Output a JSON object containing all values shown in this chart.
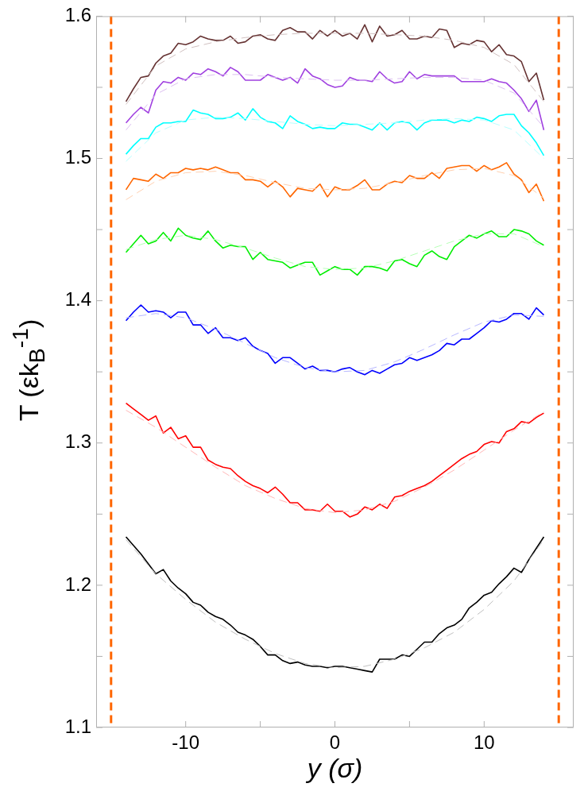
{
  "chart_data": {
    "type": "line",
    "xlabel": "y (σ)",
    "ylabel": "T (εk$_{B}$$^{-1}$)",
    "marker": "none",
    "xlim": [
      -16,
      16
    ],
    "ylim": [
      1.1,
      1.6
    ],
    "xticks": [
      -10,
      {
        "value": -5,
        "label": null
      },
      0,
      {
        "value": 5,
        "label": null
      },
      10
    ],
    "yticks": [
      1.1,
      {
        "value": 1.15,
        "label": null
      },
      1.2,
      {
        "value": 1.25,
        "label": null
      },
      1.3,
      {
        "value": 1.35,
        "label": null
      },
      1.4,
      {
        "value": 1.45,
        "label": null
      },
      1.5,
      {
        "value": 1.55,
        "label": null
      },
      1.6
    ],
    "ref_lines": [
      {
        "axis": "x",
        "value": -15,
        "color": "#ff6600",
        "line_style": "dashed"
      },
      {
        "axis": "x",
        "value": 15,
        "color": "#ff6600",
        "line_style": "dashed"
      }
    ],
    "x": [
      -14,
      -13.5,
      -13,
      -12.5,
      -12,
      -11.5,
      -11,
      -10.5,
      -10,
      -9.5,
      -9,
      -8.5,
      -8,
      -7.5,
      -7,
      -6.5,
      -6,
      -5.5,
      -5,
      -4.5,
      -4,
      -3.5,
      -3,
      -2.5,
      -2,
      -1.5,
      -1,
      -0.5,
      0,
      0.5,
      1,
      1.5,
      2,
      2.5,
      3,
      3.5,
      4,
      4.5,
      5,
      5.5,
      6,
      6.5,
      7,
      7.5,
      8,
      8.5,
      9,
      9.5,
      10,
      10.5,
      11,
      11.5,
      12,
      12.5,
      13,
      13.5,
      14
    ],
    "series": [
      {
        "line_style": "dashed",
        "color": "#c0c0c0",
        "x": [
          -14,
          -12,
          -10,
          -8,
          -6,
          -4,
          -2,
          0,
          2,
          4,
          6,
          8,
          10,
          12,
          14
        ],
        "values": [
          1.232,
          1.208,
          1.19,
          1.174,
          1.162,
          1.152,
          1.145,
          1.142,
          1.143,
          1.148,
          1.156,
          1.167,
          1.183,
          1.203,
          1.232
        ]
      },
      {
        "line_style": "dashed",
        "color": "#ffb8b8",
        "x": [
          -14,
          -12,
          -10,
          -8,
          -6,
          -4,
          -2,
          0,
          2,
          4,
          6,
          8,
          10,
          12,
          14
        ],
        "values": [
          1.323,
          1.311,
          1.297,
          1.283,
          1.27,
          1.261,
          1.254,
          1.251,
          1.253,
          1.259,
          1.269,
          1.281,
          1.295,
          1.309,
          1.322
        ]
      },
      {
        "line_style": "dashed",
        "color": "#b8b8ff",
        "x": [
          -14,
          -12,
          -10,
          -8,
          -6,
          -4,
          -2,
          0,
          2,
          4,
          6,
          8,
          10,
          12,
          14
        ],
        "values": [
          1.388,
          1.391,
          1.388,
          1.38,
          1.37,
          1.36,
          1.353,
          1.35,
          1.351,
          1.357,
          1.366,
          1.376,
          1.385,
          1.39,
          1.389
        ]
      },
      {
        "line_style": "dashed",
        "color": "#b8ffb8",
        "x": [
          -14,
          -12,
          -10,
          -8,
          -6,
          -4,
          -2,
          0,
          2,
          4,
          6,
          8,
          10,
          12,
          14
        ],
        "values": [
          1.436,
          1.443,
          1.446,
          1.443,
          1.437,
          1.43,
          1.424,
          1.422,
          1.423,
          1.428,
          1.435,
          1.442,
          1.447,
          1.447,
          1.438
        ]
      },
      {
        "line_style": "dashed",
        "color": "#ffd0b0",
        "x": [
          -14,
          -12,
          -10,
          -8,
          -6,
          -4,
          -2,
          0,
          2,
          4,
          6,
          8,
          10,
          12,
          14
        ],
        "values": [
          1.471,
          1.484,
          1.49,
          1.491,
          1.488,
          1.483,
          1.479,
          1.478,
          1.479,
          1.483,
          1.488,
          1.492,
          1.493,
          1.488,
          1.472
        ]
      },
      {
        "line_style": "dashed",
        "color": "#b8ffff",
        "x": [
          -14,
          -12,
          -10,
          -8,
          -6,
          -4,
          -2,
          0,
          2,
          4,
          6,
          8,
          10,
          12,
          14
        ],
        "values": [
          1.498,
          1.518,
          1.527,
          1.529,
          1.528,
          1.526,
          1.524,
          1.523,
          1.524,
          1.525,
          1.527,
          1.528,
          1.527,
          1.52,
          1.5
        ]
      },
      {
        "line_style": "dashed",
        "color": "#dcc0f0",
        "x": [
          -14,
          -12,
          -10,
          -8,
          -6,
          -4,
          -2,
          0,
          2,
          4,
          6,
          8,
          10,
          12,
          14
        ],
        "values": [
          1.52,
          1.545,
          1.556,
          1.559,
          1.559,
          1.557,
          1.556,
          1.555,
          1.555,
          1.556,
          1.557,
          1.557,
          1.555,
          1.546,
          1.522
        ]
      },
      {
        "line_style": "dashed",
        "color": "#d0c0c0",
        "x": [
          -14,
          -12,
          -10,
          -8,
          -6,
          -4,
          -2,
          0,
          2,
          4,
          6,
          8,
          10,
          12,
          14
        ],
        "values": [
          1.538,
          1.565,
          1.577,
          1.582,
          1.585,
          1.587,
          1.588,
          1.588,
          1.588,
          1.587,
          1.586,
          1.583,
          1.578,
          1.566,
          1.54
        ]
      },
      {
        "line_style": "solid",
        "color": "#000000",
        "values": [
          1.234,
          1.228,
          1.222,
          1.215,
          1.208,
          1.211,
          1.203,
          1.198,
          1.194,
          1.188,
          1.186,
          1.181,
          1.178,
          1.176,
          1.172,
          1.167,
          1.165,
          1.162,
          1.157,
          1.151,
          1.151,
          1.147,
          1.145,
          1.146,
          1.144,
          1.143,
          1.143,
          1.142,
          1.143,
          1.143,
          1.142,
          1.141,
          1.14,
          1.139,
          1.148,
          1.148,
          1.148,
          1.151,
          1.15,
          1.155,
          1.16,
          1.16,
          1.166,
          1.17,
          1.172,
          1.176,
          1.184,
          1.188,
          1.193,
          1.195,
          1.201,
          1.206,
          1.212,
          1.209,
          1.218,
          1.226,
          1.234
        ]
      },
      {
        "line_style": "solid",
        "color": "#ff0000",
        "values": [
          1.328,
          1.324,
          1.32,
          1.316,
          1.319,
          1.307,
          1.311,
          1.303,
          1.305,
          1.297,
          1.297,
          1.288,
          1.285,
          1.283,
          1.282,
          1.277,
          1.273,
          1.27,
          1.268,
          1.265,
          1.269,
          1.264,
          1.258,
          1.258,
          1.253,
          1.253,
          1.252,
          1.257,
          1.252,
          1.252,
          1.248,
          1.25,
          1.255,
          1.253,
          1.257,
          1.254,
          1.262,
          1.263,
          1.266,
          1.268,
          1.27,
          1.273,
          1.277,
          1.281,
          1.285,
          1.289,
          1.292,
          1.294,
          1.299,
          1.301,
          1.3,
          1.308,
          1.31,
          1.315,
          1.314,
          1.318,
          1.321
        ]
      },
      {
        "line_style": "solid",
        "color": "#0000ff",
        "values": [
          1.386,
          1.392,
          1.397,
          1.392,
          1.393,
          1.392,
          1.388,
          1.392,
          1.392,
          1.383,
          1.383,
          1.377,
          1.381,
          1.374,
          1.374,
          1.372,
          1.374,
          1.368,
          1.365,
          1.363,
          1.356,
          1.36,
          1.36,
          1.356,
          1.352,
          1.354,
          1.351,
          1.351,
          1.35,
          1.352,
          1.353,
          1.35,
          1.348,
          1.351,
          1.349,
          1.352,
          1.355,
          1.356,
          1.36,
          1.358,
          1.36,
          1.362,
          1.365,
          1.37,
          1.369,
          1.373,
          1.373,
          1.377,
          1.381,
          1.386,
          1.385,
          1.387,
          1.391,
          1.391,
          1.387,
          1.395,
          1.39
        ]
      },
      {
        "line_style": "solid",
        "color": "#00ee00",
        "values": [
          1.434,
          1.44,
          1.446,
          1.44,
          1.442,
          1.448,
          1.442,
          1.451,
          1.446,
          1.444,
          1.443,
          1.449,
          1.442,
          1.437,
          1.439,
          1.438,
          1.438,
          1.429,
          1.434,
          1.429,
          1.428,
          1.427,
          1.423,
          1.425,
          1.427,
          1.427,
          1.418,
          1.421,
          1.424,
          1.422,
          1.422,
          1.418,
          1.424,
          1.424,
          1.423,
          1.421,
          1.428,
          1.429,
          1.426,
          1.424,
          1.432,
          1.435,
          1.431,
          1.429,
          1.438,
          1.442,
          1.446,
          1.444,
          1.447,
          1.449,
          1.445,
          1.445,
          1.45,
          1.449,
          1.447,
          1.442,
          1.439
        ]
      },
      {
        "line_style": "solid",
        "color": "#ff6600",
        "values": [
          1.478,
          1.486,
          1.485,
          1.484,
          1.489,
          1.486,
          1.49,
          1.49,
          1.493,
          1.492,
          1.493,
          1.492,
          1.494,
          1.492,
          1.49,
          1.49,
          1.485,
          1.485,
          1.484,
          1.48,
          1.484,
          1.48,
          1.473,
          1.479,
          1.478,
          1.477,
          1.482,
          1.473,
          1.48,
          1.478,
          1.478,
          1.481,
          1.485,
          1.478,
          1.478,
          1.482,
          1.484,
          1.483,
          1.488,
          1.486,
          1.486,
          1.49,
          1.486,
          1.493,
          1.494,
          1.495,
          1.495,
          1.491,
          1.495,
          1.492,
          1.494,
          1.497,
          1.489,
          1.485,
          1.476,
          1.482,
          1.47
        ]
      },
      {
        "line_style": "solid",
        "color": "#00ffff",
        "values": [
          1.503,
          1.509,
          1.514,
          1.514,
          1.522,
          1.525,
          1.525,
          1.526,
          1.526,
          1.534,
          1.532,
          1.531,
          1.528,
          1.528,
          1.529,
          1.532,
          1.527,
          1.535,
          1.529,
          1.526,
          1.525,
          1.521,
          1.53,
          1.526,
          1.524,
          1.521,
          1.522,
          1.521,
          1.521,
          1.525,
          1.524,
          1.524,
          1.522,
          1.52,
          1.525,
          1.52,
          1.525,
          1.526,
          1.525,
          1.52,
          1.525,
          1.527,
          1.527,
          1.527,
          1.525,
          1.527,
          1.526,
          1.529,
          1.528,
          1.526,
          1.53,
          1.531,
          1.531,
          1.523,
          1.518,
          1.511,
          1.502
        ]
      },
      {
        "line_style": "solid",
        "color": "#a040e0",
        "values": [
          1.525,
          1.531,
          1.536,
          1.532,
          1.548,
          1.554,
          1.553,
          1.557,
          1.555,
          1.56,
          1.559,
          1.563,
          1.561,
          1.558,
          1.564,
          1.561,
          1.555,
          1.555,
          1.555,
          1.559,
          1.557,
          1.555,
          1.557,
          1.553,
          1.563,
          1.558,
          1.556,
          1.552,
          1.55,
          1.551,
          1.557,
          1.555,
          1.555,
          1.554,
          1.561,
          1.556,
          1.553,
          1.554,
          1.561,
          1.556,
          1.559,
          1.558,
          1.558,
          1.558,
          1.558,
          1.554,
          1.554,
          1.554,
          1.554,
          1.556,
          1.554,
          1.553,
          1.548,
          1.542,
          1.533,
          1.541,
          1.52
        ]
      },
      {
        "line_style": "solid",
        "color": "#663333",
        "values": [
          1.54,
          1.549,
          1.557,
          1.558,
          1.567,
          1.572,
          1.574,
          1.581,
          1.58,
          1.582,
          1.586,
          1.584,
          1.583,
          1.583,
          1.586,
          1.581,
          1.582,
          1.586,
          1.587,
          1.584,
          1.583,
          1.59,
          1.592,
          1.589,
          1.589,
          1.584,
          1.59,
          1.586,
          1.59,
          1.586,
          1.588,
          1.584,
          1.594,
          1.582,
          1.593,
          1.586,
          1.587,
          1.59,
          1.584,
          1.584,
          1.586,
          1.585,
          1.591,
          1.59,
          1.578,
          1.581,
          1.58,
          1.583,
          1.582,
          1.575,
          1.58,
          1.573,
          1.572,
          1.568,
          1.554,
          1.56,
          1.541
        ]
      }
    ]
  }
}
